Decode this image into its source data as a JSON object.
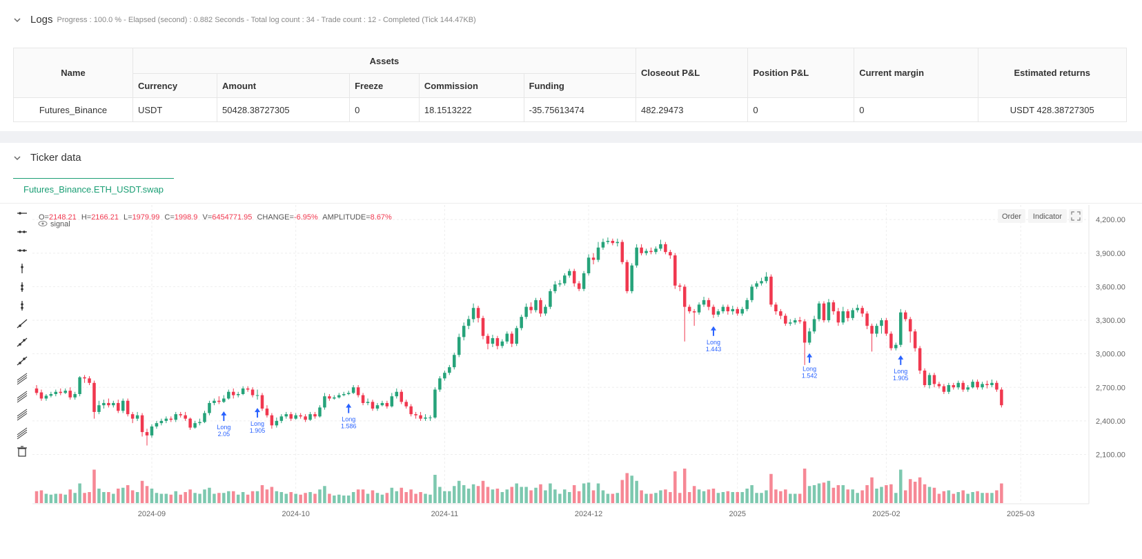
{
  "logs": {
    "title": "Logs",
    "status": "Progress : 100.0 % - Elapsed (second) : 0.882  Seconds - Total log count : 34 - Trade count : 12 - Completed (Tick 144.47KB)"
  },
  "assets_table": {
    "group_header": "Assets",
    "headers": {
      "name": "Name",
      "currency": "Currency",
      "amount": "Amount",
      "freeze": "Freeze",
      "commission": "Commission",
      "funding": "Funding",
      "closeout": "Closeout P&L",
      "position": "Position P&L",
      "margin": "Current margin",
      "returns": "Estimated returns"
    },
    "row": {
      "name": "Futures_Binance",
      "currency": "USDT",
      "amount": "50428.38727305",
      "freeze": "0",
      "commission": "18.1513222",
      "funding": "-35.75613474",
      "closeout": "482.29473",
      "position": "0",
      "margin": "0",
      "returns": "USDT 428.38727305"
    }
  },
  "ticker": {
    "title": "Ticker data",
    "tab": "Futures_Binance.ETH_USDT.swap"
  },
  "chart_header": {
    "o_label": "O=",
    "o": "2148.21",
    "h_label": "H=",
    "h": "2166.21",
    "l_label": "L=",
    "l": "1979.99",
    "c_label": "C=",
    "c": "1998.9",
    "v_label": "V=",
    "v": "6454771.95",
    "change_label": "CHANGE=",
    "change": "-6.95%",
    "amp_label": "AMPLITUDE=",
    "amp": "8.67%",
    "signal": "signal"
  },
  "chart_buttons": {
    "order": "Order",
    "indicator": "Indicator"
  },
  "colors": {
    "up": "#26a37a",
    "down": "#f0384f",
    "signal": "#2962ff",
    "accent": "#1a9e74"
  },
  "chart_data": {
    "type": "candlestick",
    "y_ticks": [
      "4,200.00",
      "3,900.00",
      "3,600.00",
      "3,300.00",
      "3,000.00",
      "2,700.00",
      "2,400.00",
      "2,100.00"
    ],
    "y_tick_values": [
      4200,
      3900,
      3600,
      3300,
      3000,
      2700,
      2400,
      2100
    ],
    "ylim": [
      1850,
      4300
    ],
    "x_ticks": [
      "2024-09",
      "2024-10",
      "2024-11",
      "2024-12",
      "2025",
      "2025-02",
      "2025-03"
    ],
    "x_tick_days": [
      24,
      54,
      85,
      115,
      146,
      177,
      205
    ],
    "n_days": 210,
    "candles": [
      [
        2690,
        2650,
        2720,
        2630
      ],
      [
        2655,
        2600,
        2680,
        2580
      ],
      [
        2600,
        2625,
        2640,
        2580
      ],
      [
        2625,
        2640,
        2660,
        2610
      ],
      [
        2640,
        2660,
        2680,
        2620
      ],
      [
        2660,
        2650,
        2690,
        2630
      ],
      [
        2650,
        2670,
        2690,
        2640
      ],
      [
        2670,
        2610,
        2700,
        2590
      ],
      [
        2610,
        2640,
        2660,
        2590
      ],
      [
        2640,
        2790,
        2800,
        2620
      ],
      [
        2790,
        2780,
        2810,
        2740
      ],
      [
        2780,
        2740,
        2800,
        2720
      ],
      [
        2740,
        2480,
        2760,
        2420
      ],
      [
        2480,
        2540,
        2580,
        2460
      ],
      [
        2540,
        2560,
        2590,
        2510
      ],
      [
        2560,
        2540,
        2600,
        2520
      ],
      [
        2540,
        2560,
        2580,
        2520
      ],
      [
        2560,
        2490,
        2590,
        2470
      ],
      [
        2490,
        2580,
        2600,
        2470
      ],
      [
        2580,
        2460,
        2600,
        2440
      ],
      [
        2460,
        2420,
        2480,
        2380
      ],
      [
        2420,
        2450,
        2480,
        2400
      ],
      [
        2450,
        2300,
        2470,
        2260
      ],
      [
        2300,
        2270,
        2330,
        2180
      ],
      [
        2270,
        2350,
        2370,
        2250
      ],
      [
        2350,
        2380,
        2400,
        2330
      ],
      [
        2380,
        2400,
        2420,
        2360
      ],
      [
        2400,
        2420,
        2440,
        2380
      ],
      [
        2420,
        2410,
        2440,
        2390
      ],
      [
        2410,
        2460,
        2480,
        2390
      ],
      [
        2460,
        2450,
        2480,
        2430
      ],
      [
        2450,
        2420,
        2480,
        2400
      ],
      [
        2420,
        2340,
        2430,
        2320
      ],
      [
        2340,
        2380,
        2400,
        2330
      ],
      [
        2380,
        2390,
        2420,
        2360
      ],
      [
        2390,
        2470,
        2490,
        2380
      ],
      [
        2470,
        2560,
        2580,
        2450
      ],
      [
        2560,
        2580,
        2600,
        2540
      ],
      [
        2580,
        2570,
        2620,
        2550
      ],
      [
        2570,
        2600,
        2630,
        2560
      ],
      [
        2600,
        2660,
        2680,
        2590
      ],
      [
        2660,
        2630,
        2690,
        2600
      ],
      [
        2630,
        2640,
        2660,
        2610
      ],
      [
        2640,
        2690,
        2710,
        2630
      ],
      [
        2690,
        2680,
        2710,
        2660
      ],
      [
        2680,
        2630,
        2700,
        2610
      ],
      [
        2630,
        2630,
        2680,
        2590
      ],
      [
        2630,
        2510,
        2650,
        2490
      ],
      [
        2510,
        2450,
        2540,
        2430
      ],
      [
        2450,
        2360,
        2470,
        2330
      ],
      [
        2360,
        2400,
        2430,
        2340
      ],
      [
        2400,
        2440,
        2460,
        2380
      ],
      [
        2440,
        2460,
        2480,
        2420
      ],
      [
        2460,
        2420,
        2480,
        2400
      ],
      [
        2420,
        2450,
        2470,
        2410
      ],
      [
        2450,
        2440,
        2470,
        2420
      ],
      [
        2440,
        2410,
        2460,
        2390
      ],
      [
        2410,
        2460,
        2480,
        2400
      ],
      [
        2460,
        2440,
        2480,
        2420
      ],
      [
        2440,
        2520,
        2540,
        2430
      ],
      [
        2520,
        2620,
        2650,
        2500
      ],
      [
        2620,
        2600,
        2640,
        2580
      ],
      [
        2600,
        2610,
        2630,
        2590
      ],
      [
        2610,
        2630,
        2650,
        2600
      ],
      [
        2630,
        2640,
        2660,
        2620
      ],
      [
        2640,
        2650,
        2670,
        2630
      ],
      [
        2650,
        2700,
        2720,
        2640
      ],
      [
        2700,
        2630,
        2720,
        2610
      ],
      [
        2630,
        2560,
        2650,
        2540
      ],
      [
        2560,
        2570,
        2600,
        2540
      ],
      [
        2570,
        2510,
        2590,
        2490
      ],
      [
        2510,
        2540,
        2560,
        2490
      ],
      [
        2540,
        2560,
        2580,
        2530
      ],
      [
        2560,
        2530,
        2580,
        2510
      ],
      [
        2530,
        2620,
        2650,
        2520
      ],
      [
        2620,
        2660,
        2690,
        2600
      ],
      [
        2660,
        2570,
        2680,
        2550
      ],
      [
        2570,
        2530,
        2590,
        2510
      ],
      [
        2530,
        2460,
        2550,
        2440
      ],
      [
        2460,
        2450,
        2480,
        2420
      ],
      [
        2450,
        2420,
        2480,
        2400
      ],
      [
        2420,
        2430,
        2460,
        2400
      ],
      [
        2430,
        2430,
        2450,
        2400
      ],
      [
        2430,
        2680,
        2700,
        2420
      ],
      [
        2680,
        2780,
        2800,
        2660
      ],
      [
        2780,
        2830,
        2850,
        2760
      ],
      [
        2830,
        2880,
        2900,
        2810
      ],
      [
        2880,
        2990,
        3010,
        2860
      ],
      [
        2990,
        3150,
        3180,
        2970
      ],
      [
        3150,
        3250,
        3280,
        3120
      ],
      [
        3250,
        3310,
        3340,
        3220
      ],
      [
        3310,
        3410,
        3450,
        3280
      ],
      [
        3410,
        3320,
        3430,
        3280
      ],
      [
        3320,
        3160,
        3340,
        3130
      ],
      [
        3160,
        3090,
        3180,
        3040
      ],
      [
        3090,
        3140,
        3170,
        3060
      ],
      [
        3140,
        3070,
        3160,
        3040
      ],
      [
        3070,
        3110,
        3130,
        3050
      ],
      [
        3110,
        3180,
        3200,
        3090
      ],
      [
        3180,
        3090,
        3200,
        3060
      ],
      [
        3090,
        3230,
        3250,
        3070
      ],
      [
        3230,
        3330,
        3350,
        3210
      ],
      [
        3330,
        3420,
        3450,
        3310
      ],
      [
        3420,
        3390,
        3460,
        3360
      ],
      [
        3390,
        3480,
        3500,
        3370
      ],
      [
        3480,
        3360,
        3500,
        3330
      ],
      [
        3360,
        3420,
        3440,
        3340
      ],
      [
        3420,
        3560,
        3580,
        3400
      ],
      [
        3560,
        3620,
        3650,
        3540
      ],
      [
        3620,
        3630,
        3660,
        3600
      ],
      [
        3630,
        3700,
        3720,
        3610
      ],
      [
        3700,
        3740,
        3760,
        3680
      ],
      [
        3740,
        3630,
        3760,
        3600
      ],
      [
        3630,
        3580,
        3650,
        3560
      ],
      [
        3580,
        3720,
        3740,
        3560
      ],
      [
        3720,
        3860,
        3890,
        3700
      ],
      [
        3860,
        3840,
        3900,
        3800
      ],
      [
        3840,
        3950,
        4000,
        3820
      ],
      [
        3950,
        4000,
        4030,
        3930
      ],
      [
        4000,
        4010,
        4040,
        3980
      ],
      [
        4010,
        3990,
        4030,
        3970
      ],
      [
        3990,
        4000,
        4030,
        3960
      ],
      [
        4000,
        3820,
        4020,
        3800
      ],
      [
        3820,
        3560,
        3840,
        3540
      ],
      [
        3560,
        3790,
        3810,
        3540
      ],
      [
        3790,
        3950,
        3980,
        3770
      ],
      [
        3950,
        3900,
        3980,
        3880
      ],
      [
        3900,
        3920,
        3940,
        3880
      ],
      [
        3920,
        3910,
        3950,
        3890
      ],
      [
        3910,
        3940,
        3960,
        3890
      ],
      [
        3940,
        3980,
        4020,
        3920
      ],
      [
        3980,
        3910,
        4000,
        3890
      ],
      [
        3910,
        3880,
        3930,
        3850
      ],
      [
        3880,
        3610,
        3900,
        3580
      ],
      [
        3610,
        3600,
        3630,
        3560
      ],
      [
        3600,
        3420,
        3620,
        3110
      ],
      [
        3420,
        3380,
        3440,
        3360
      ],
      [
        3380,
        3370,
        3400,
        3250
      ],
      [
        3370,
        3440,
        3460,
        3350
      ],
      [
        3440,
        3480,
        3510,
        3420
      ],
      [
        3480,
        3420,
        3500,
        3390
      ],
      [
        3420,
        3350,
        3440,
        3320
      ],
      [
        3350,
        3380,
        3400,
        3330
      ],
      [
        3380,
        3420,
        3440,
        3360
      ],
      [
        3420,
        3380,
        3440,
        3350
      ],
      [
        3380,
        3400,
        3430,
        3350
      ],
      [
        3400,
        3360,
        3420,
        3340
      ],
      [
        3360,
        3400,
        3420,
        3340
      ],
      [
        3400,
        3480,
        3500,
        3380
      ],
      [
        3480,
        3600,
        3620,
        3460
      ],
      [
        3600,
        3630,
        3650,
        3580
      ],
      [
        3630,
        3650,
        3680,
        3610
      ],
      [
        3650,
        3690,
        3730,
        3630
      ],
      [
        3690,
        3440,
        3710,
        3420
      ],
      [
        3440,
        3380,
        3460,
        3350
      ],
      [
        3380,
        3340,
        3400,
        3310
      ],
      [
        3340,
        3270,
        3360,
        3250
      ],
      [
        3270,
        3280,
        3310,
        3250
      ],
      [
        3280,
        3300,
        3320,
        3260
      ],
      [
        3300,
        3290,
        3330,
        3270
      ],
      [
        3290,
        3100,
        3310,
        2900
      ],
      [
        3100,
        3200,
        3230,
        3080
      ],
      [
        3200,
        3310,
        3340,
        3180
      ],
      [
        3310,
        3450,
        3470,
        3290
      ],
      [
        3450,
        3300,
        3470,
        3280
      ],
      [
        3300,
        3460,
        3490,
        3280
      ],
      [
        3460,
        3380,
        3480,
        3350
      ],
      [
        3380,
        3280,
        3410,
        3250
      ],
      [
        3280,
        3380,
        3420,
        3260
      ],
      [
        3380,
        3320,
        3400,
        3290
      ],
      [
        3320,
        3390,
        3410,
        3300
      ],
      [
        3390,
        3410,
        3440,
        3370
      ],
      [
        3410,
        3360,
        3430,
        3330
      ],
      [
        3360,
        3250,
        3380,
        3220
      ],
      [
        3250,
        3180,
        3270,
        3020
      ],
      [
        3180,
        3250,
        3270,
        3150
      ],
      [
        3250,
        3300,
        3320,
        3180
      ],
      [
        3300,
        3180,
        3320,
        3160
      ],
      [
        3180,
        3050,
        3200,
        3030
      ],
      [
        3050,
        3080,
        3100,
        3030
      ],
      [
        3080,
        3370,
        3400,
        3060
      ],
      [
        3370,
        3310,
        3390,
        3290
      ],
      [
        3310,
        3200,
        3330,
        3100
      ],
      [
        3200,
        3050,
        3220,
        3020
      ],
      [
        3050,
        2850,
        3070,
        2820
      ],
      [
        2850,
        2720,
        2870,
        2700
      ],
      [
        2720,
        2810,
        2830,
        2690
      ],
      [
        2810,
        2730,
        2830,
        2700
      ],
      [
        2730,
        2710,
        2750,
        2690
      ],
      [
        2710,
        2660,
        2730,
        2640
      ],
      [
        2660,
        2720,
        2740,
        2640
      ],
      [
        2720,
        2700,
        2740,
        2680
      ],
      [
        2700,
        2740,
        2760,
        2680
      ],
      [
        2740,
        2680,
        2760,
        2660
      ],
      [
        2680,
        2700,
        2720,
        2660
      ],
      [
        2700,
        2750,
        2770,
        2690
      ],
      [
        2750,
        2700,
        2770,
        2680
      ],
      [
        2700,
        2730,
        2750,
        2680
      ],
      [
        2730,
        2720,
        2760,
        2690
      ],
      [
        2720,
        2740,
        2770,
        2700
      ],
      [
        2740,
        2680,
        2760,
        2660
      ],
      [
        2680,
        2540,
        2700,
        2520
      ]
    ]
  },
  "signals": [
    {
      "day": 39,
      "label": "Long",
      "value": "2.05"
    },
    {
      "day": 46,
      "label": "Long",
      "value": "1.905"
    },
    {
      "day": 65,
      "label": "Long",
      "value": "1.586"
    },
    {
      "day": 141,
      "label": "Long",
      "value": "1.443"
    },
    {
      "day": 161,
      "label": "Long",
      "value": "1.542"
    },
    {
      "day": 180,
      "label": "Long",
      "value": "1.905"
    }
  ]
}
